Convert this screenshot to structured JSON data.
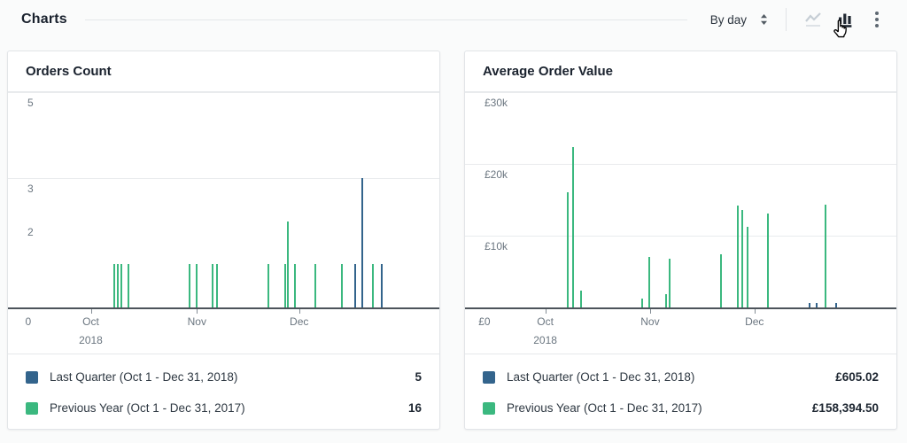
{
  "header": {
    "title": "Charts",
    "group_by_value": "By day",
    "icons": {
      "line_chart": "line-chart-view",
      "bar_chart": "bar-chart-view",
      "overflow": "overflow-menu"
    }
  },
  "colors": {
    "blue": "#33648c",
    "green": "#3bb87f",
    "grid": "#e9ebed",
    "axis": "#4d545b",
    "label": "#6b7680"
  },
  "chart_data": [
    {
      "type": "bar",
      "title": "Orders Count",
      "ylim": [
        0,
        5
      ],
      "y_axis": {
        "labels": [
          {
            "text": "5",
            "value": 5
          },
          {
            "text": "3",
            "value": 3
          },
          {
            "text": "2",
            "value": 2
          }
        ],
        "gridline_values": [
          5,
          3
        ],
        "zero_label": "0"
      },
      "x_axis": {
        "zero_pct": 4.7,
        "months": [
          {
            "label": "Oct",
            "pct": 19.2,
            "year": "2018"
          },
          {
            "label": "Nov",
            "pct": 43.8
          },
          {
            "label": "Dec",
            "pct": 67.5
          }
        ]
      },
      "series": [
        {
          "name": "Previous Year (Oct 1 - Dec 31, 2017)",
          "color_key": "green",
          "total_label": "16",
          "points": [
            {
              "pct": 24.7,
              "value": 1
            },
            {
              "pct": 25.5,
              "value": 1
            },
            {
              "pct": 26.2,
              "value": 1
            },
            {
              "pct": 28.0,
              "value": 1
            },
            {
              "pct": 42.1,
              "value": 1
            },
            {
              "pct": 43.8,
              "value": 1
            },
            {
              "pct": 47.4,
              "value": 1
            },
            {
              "pct": 48.5,
              "value": 1
            },
            {
              "pct": 60.3,
              "value": 1
            },
            {
              "pct": 64.2,
              "value": 1
            },
            {
              "pct": 64.9,
              "value": 2
            },
            {
              "pct": 66.5,
              "value": 1
            },
            {
              "pct": 71.2,
              "value": 1
            },
            {
              "pct": 77.5,
              "value": 1
            },
            {
              "pct": 84.6,
              "value": 1
            }
          ]
        },
        {
          "name": "Last Quarter (Oct 1 - Dec 31, 2018)",
          "color_key": "blue",
          "total_label": "5",
          "points": [
            {
              "pct": 80.4,
              "value": 1
            },
            {
              "pct": 82.2,
              "value": 3
            },
            {
              "pct": 86.7,
              "value": 1
            }
          ]
        }
      ],
      "legend_order": [
        1,
        0
      ]
    },
    {
      "type": "bar",
      "title": "Average Order Value",
      "ylim": [
        0,
        30000
      ],
      "y_axis": {
        "labels": [
          {
            "text": "£30k",
            "value": 30000
          },
          {
            "text": "£20k",
            "value": 20000
          },
          {
            "text": "£10k",
            "value": 10000
          }
        ],
        "gridline_values": [
          30000,
          20000,
          10000
        ],
        "zero_label": "£0"
      },
      "x_axis": {
        "zero_pct": 4.5,
        "months": [
          {
            "label": "Oct",
            "pct": 18.6,
            "year": "2018"
          },
          {
            "label": "Nov",
            "pct": 42.9
          },
          {
            "label": "Dec",
            "pct": 67.1
          }
        ]
      },
      "series": [
        {
          "name": "Previous Year (Oct 1 - Dec 31, 2017)",
          "color_key": "green",
          "total_label": "£158,394.50",
          "points": [
            {
              "pct": 23.9,
              "value": 16000
            },
            {
              "pct": 25.0,
              "value": 22300
            },
            {
              "pct": 27.0,
              "value": 2300
            },
            {
              "pct": 41.1,
              "value": 1200
            },
            {
              "pct": 42.7,
              "value": 7000
            },
            {
              "pct": 46.6,
              "value": 1800
            },
            {
              "pct": 47.4,
              "value": 6800
            },
            {
              "pct": 59.3,
              "value": 7400
            },
            {
              "pct": 63.2,
              "value": 14200
            },
            {
              "pct": 64.2,
              "value": 13600
            },
            {
              "pct": 65.6,
              "value": 11200
            },
            {
              "pct": 70.3,
              "value": 13100
            },
            {
              "pct": 83.6,
              "value": 14300
            }
          ]
        },
        {
          "name": "Last Quarter (Oct 1 - Dec 31, 2018)",
          "color_key": "blue",
          "total_label": "£605.02",
          "points": [
            {
              "pct": 79.8,
              "value": 600
            },
            {
              "pct": 81.6,
              "value": 600
            },
            {
              "pct": 86.1,
              "value": 600
            }
          ]
        }
      ],
      "legend_order": [
        1,
        0
      ]
    }
  ]
}
